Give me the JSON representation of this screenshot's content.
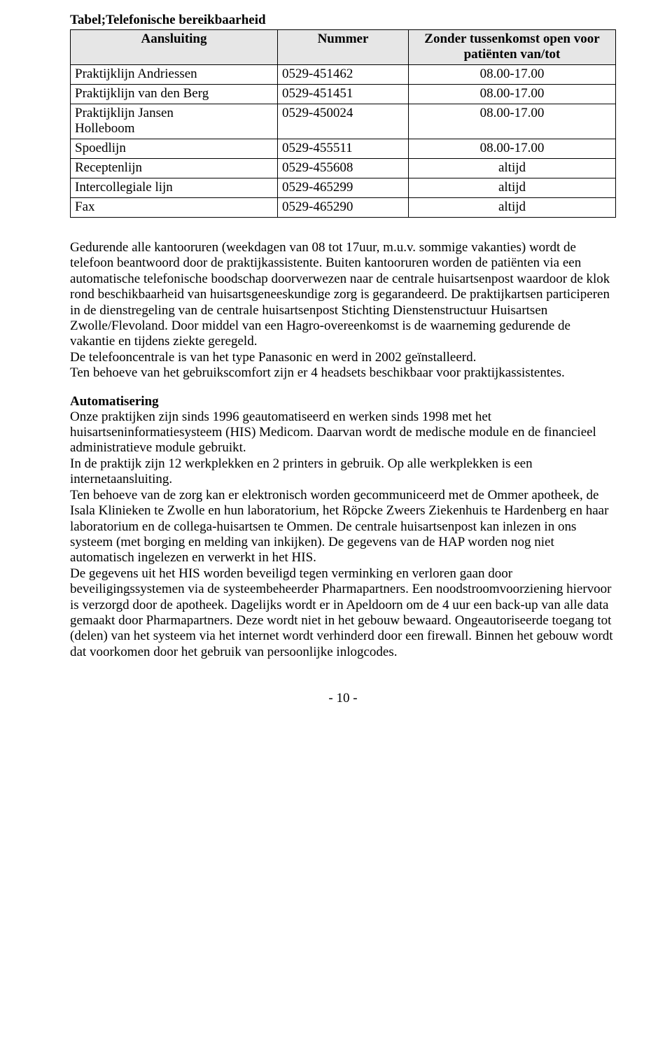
{
  "table": {
    "caption": "Tabel;Telefonische bereikbaarheid",
    "headers": {
      "col1": "Aansluiting",
      "col2": "Nummer",
      "col3": "Zonder tussenkomst open voor patiënten van/tot"
    },
    "rows": [
      {
        "c1": "Praktijklijn Andriessen",
        "c2": "0529-451462",
        "c3": "08.00-17.00"
      },
      {
        "c1": "Praktijklijn van den Berg",
        "c2": "0529-451451",
        "c3": "08.00-17.00"
      },
      {
        "c1": "Praktijklijn Jansen\nHolleboom",
        "c2": "0529-450024",
        "c3": "08.00-17.00"
      },
      {
        "c1": "Spoedlijn",
        "c2": "0529-455511",
        "c3": "08.00-17.00"
      },
      {
        "c1": "Receptenlijn",
        "c2": "0529-455608",
        "c3": "altijd"
      },
      {
        "c1": "Intercollegiale lijn",
        "c2": "0529-465299",
        "c3": "altijd"
      },
      {
        "c1": "Fax",
        "c2": "0529-465290",
        "c3": "altijd"
      }
    ]
  },
  "paragraphs": {
    "p1": "Gedurende alle kantooruren (weekdagen van 08 tot 17uur, m.u.v. sommige vakanties) wordt de telefoon beantwoord door de praktijkassistente. Buiten kantooruren worden de patiënten via een automatische telefonische boodschap doorverwezen naar de centrale huisartsenpost waardoor de klok rond beschikbaarheid van huisartsgeneeskundige zorg is gegarandeerd. De praktijkartsen participeren in de dienstregeling van de centrale huisartsenpost Stichting Dienstenstructuur Huisartsen Zwolle/Flevoland. Door middel van een Hagro-overeenkomst is de waarneming gedurende de vakantie en tijdens ziekte geregeld.",
    "p2": "De telefooncentrale is van het type Panasonic en werd in 2002 geïnstalleerd.",
    "p3": "Ten behoeve van het gebruikscomfort zijn er 4 headsets beschikbaar voor praktijkassistentes.",
    "headAuto": "Automatisering",
    "p4": "Onze praktijken zijn sinds 1996 geautomatiseerd en werken sinds 1998 met het huisartseninformatiesysteem (HIS) Medicom. Daarvan wordt de medische module en de financieel administratieve module gebruikt.",
    "p5": "In de praktijk zijn 12 werkplekken en 2 printers in gebruik. Op alle werkplekken is een internetaansluiting.",
    "p6": "Ten behoeve van de zorg kan er elektronisch worden gecommuniceerd met de Ommer apotheek, de Isala Klinieken te Zwolle en hun laboratorium, het Röpcke Zweers Ziekenhuis te Hardenberg en haar laboratorium en de collega-huisartsen te Ommen. De centrale huisartsenpost kan inlezen in ons systeem (met borging en melding van inkijken). De gegevens van de HAP worden nog niet automatisch ingelezen en verwerkt in het HIS.",
    "p7": "De gegevens uit het HIS worden beveiligd tegen verminking en verloren gaan door beveiligingssystemen via de systeembeheerder Pharmapartners. Een noodstroomvoorziening hiervoor is verzorgd door de apotheek. Dagelijks wordt er in Apeldoorn om de 4 uur een back-up van alle data gemaakt door Pharmapartners. Deze wordt niet in het gebouw bewaard. Ongeautoriseerde toegang tot (delen) van het systeem via het internet wordt verhinderd door een firewall. Binnen het gebouw wordt dat voorkomen door het gebruik van persoonlijke inlogcodes."
  },
  "footer": "- 10 -"
}
